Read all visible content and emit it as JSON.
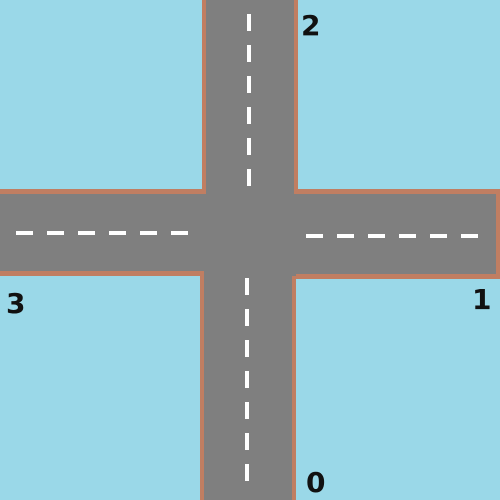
{
  "colors": {
    "water": "#9AD8E8",
    "road": "#7F7F7F",
    "curb": "#C07E62",
    "lane_marking": "#FFFFFF",
    "label_text": "#111111"
  },
  "intersection": {
    "type": "four-way-crossroad",
    "arms": [
      {
        "id": 0,
        "label": "0",
        "direction": "south"
      },
      {
        "id": 1,
        "label": "1",
        "direction": "east"
      },
      {
        "id": 2,
        "label": "2",
        "direction": "north"
      },
      {
        "id": 3,
        "label": "3",
        "direction": "west"
      }
    ],
    "lane_marking_style": "dashed"
  }
}
